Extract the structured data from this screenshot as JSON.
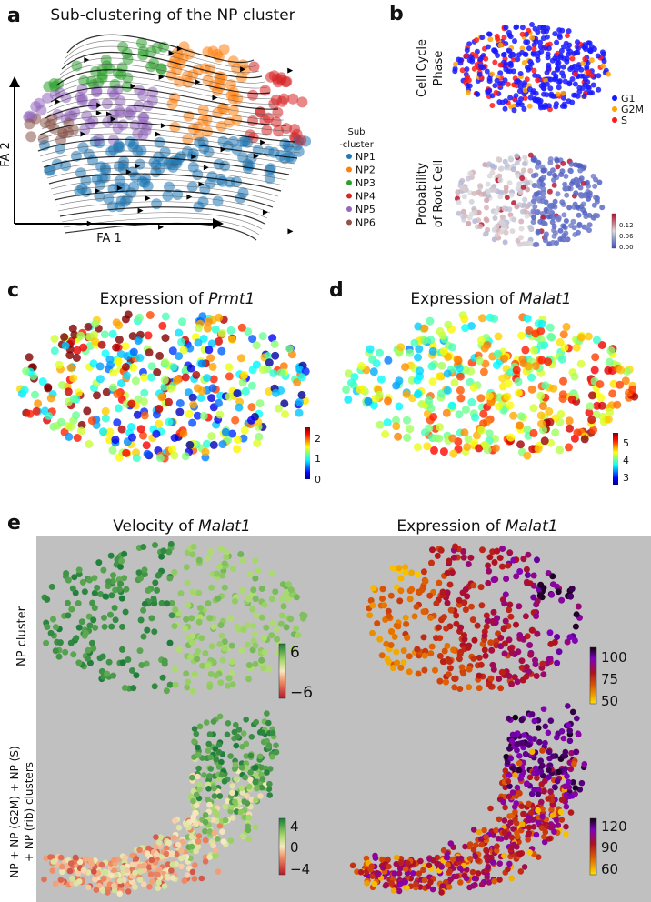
{
  "panel_labels": [
    "a",
    "b",
    "c",
    "d",
    "e"
  ],
  "chart_data": [
    {
      "id": "a",
      "type": "scatter",
      "title": "Sub-clustering of the NP cluster",
      "xlabel": "FA 1",
      "ylabel": "FA 2",
      "legend": {
        "title": [
          "Sub",
          "-cluster"
        ],
        "placement": "right",
        "entries": [
          {
            "label": "NP1",
            "color": "#1f77b4"
          },
          {
            "label": "NP2",
            "color": "#ff7f0e"
          },
          {
            "label": "NP3",
            "color": "#2ca02c"
          },
          {
            "label": "NP4",
            "color": "#d62728"
          },
          {
            "label": "NP5",
            "color": "#9467bd"
          },
          {
            "label": "NP6",
            "color": "#8c564b"
          }
        ]
      },
      "overlay": "velocity streamlines"
    },
    {
      "id": "b-top",
      "type": "scatter",
      "ylabel": [
        "Cell Cycle",
        "Phase"
      ],
      "legend": {
        "placement": "right",
        "entries": [
          {
            "label": "G1",
            "color": "#1a1aff"
          },
          {
            "label": "G2M",
            "color": "#ffa500"
          },
          {
            "label": "S",
            "color": "#ff1a1a"
          }
        ]
      }
    },
    {
      "id": "b-bottom",
      "type": "scatter",
      "ylabel": [
        "Probability",
        "of Root Cell"
      ],
      "colorbar": {
        "cmap": "coolwarm",
        "range": [
          0,
          0.15
        ],
        "ticks": [
          "0.12",
          "0.06",
          "0.00"
        ]
      }
    },
    {
      "id": "c",
      "type": "scatter",
      "title_prefix": "Expression of ",
      "gene": "Prmt1",
      "colorbar": {
        "cmap": "jet",
        "range": [
          0,
          2.4
        ],
        "ticks": [
          "2",
          "1",
          "0"
        ]
      }
    },
    {
      "id": "d",
      "type": "scatter",
      "title_prefix": "Expression of ",
      "gene": "Malat1",
      "colorbar": {
        "cmap": "jet",
        "range": [
          2.6,
          5.5
        ],
        "ticks": [
          "5",
          "4",
          "3"
        ]
      }
    },
    {
      "id": "e",
      "type": "scatter",
      "columns": [
        {
          "title_prefix": "Velocity of ",
          "gene": "Malat1"
        },
        {
          "title_prefix": "Expression of ",
          "gene": "Malat1"
        }
      ],
      "rows": [
        {
          "label": [
            "NP cluster"
          ]
        },
        {
          "label": [
            "NP + NP (G2M) + NP (S)",
            "+ NP (rib)  clusters"
          ]
        }
      ],
      "colorbars": [
        {
          "cmap": "red-tan-green",
          "range": [
            -8,
            8
          ],
          "ticks": [
            "6",
            "−6"
          ]
        },
        {
          "cmap": "yellow-red-purple-black",
          "range": [
            45,
            115
          ],
          "ticks": [
            "100",
            "75",
            "50"
          ]
        },
        {
          "cmap": "red-tan-green",
          "range": [
            -6,
            6
          ],
          "ticks": [
            "4",
            "0",
            "−4"
          ]
        },
        {
          "cmap": "yellow-red-purple-black",
          "range": [
            45,
            135
          ],
          "ticks": [
            "120",
            "90",
            "60"
          ]
        }
      ],
      "background": "#c0c0c0"
    }
  ]
}
